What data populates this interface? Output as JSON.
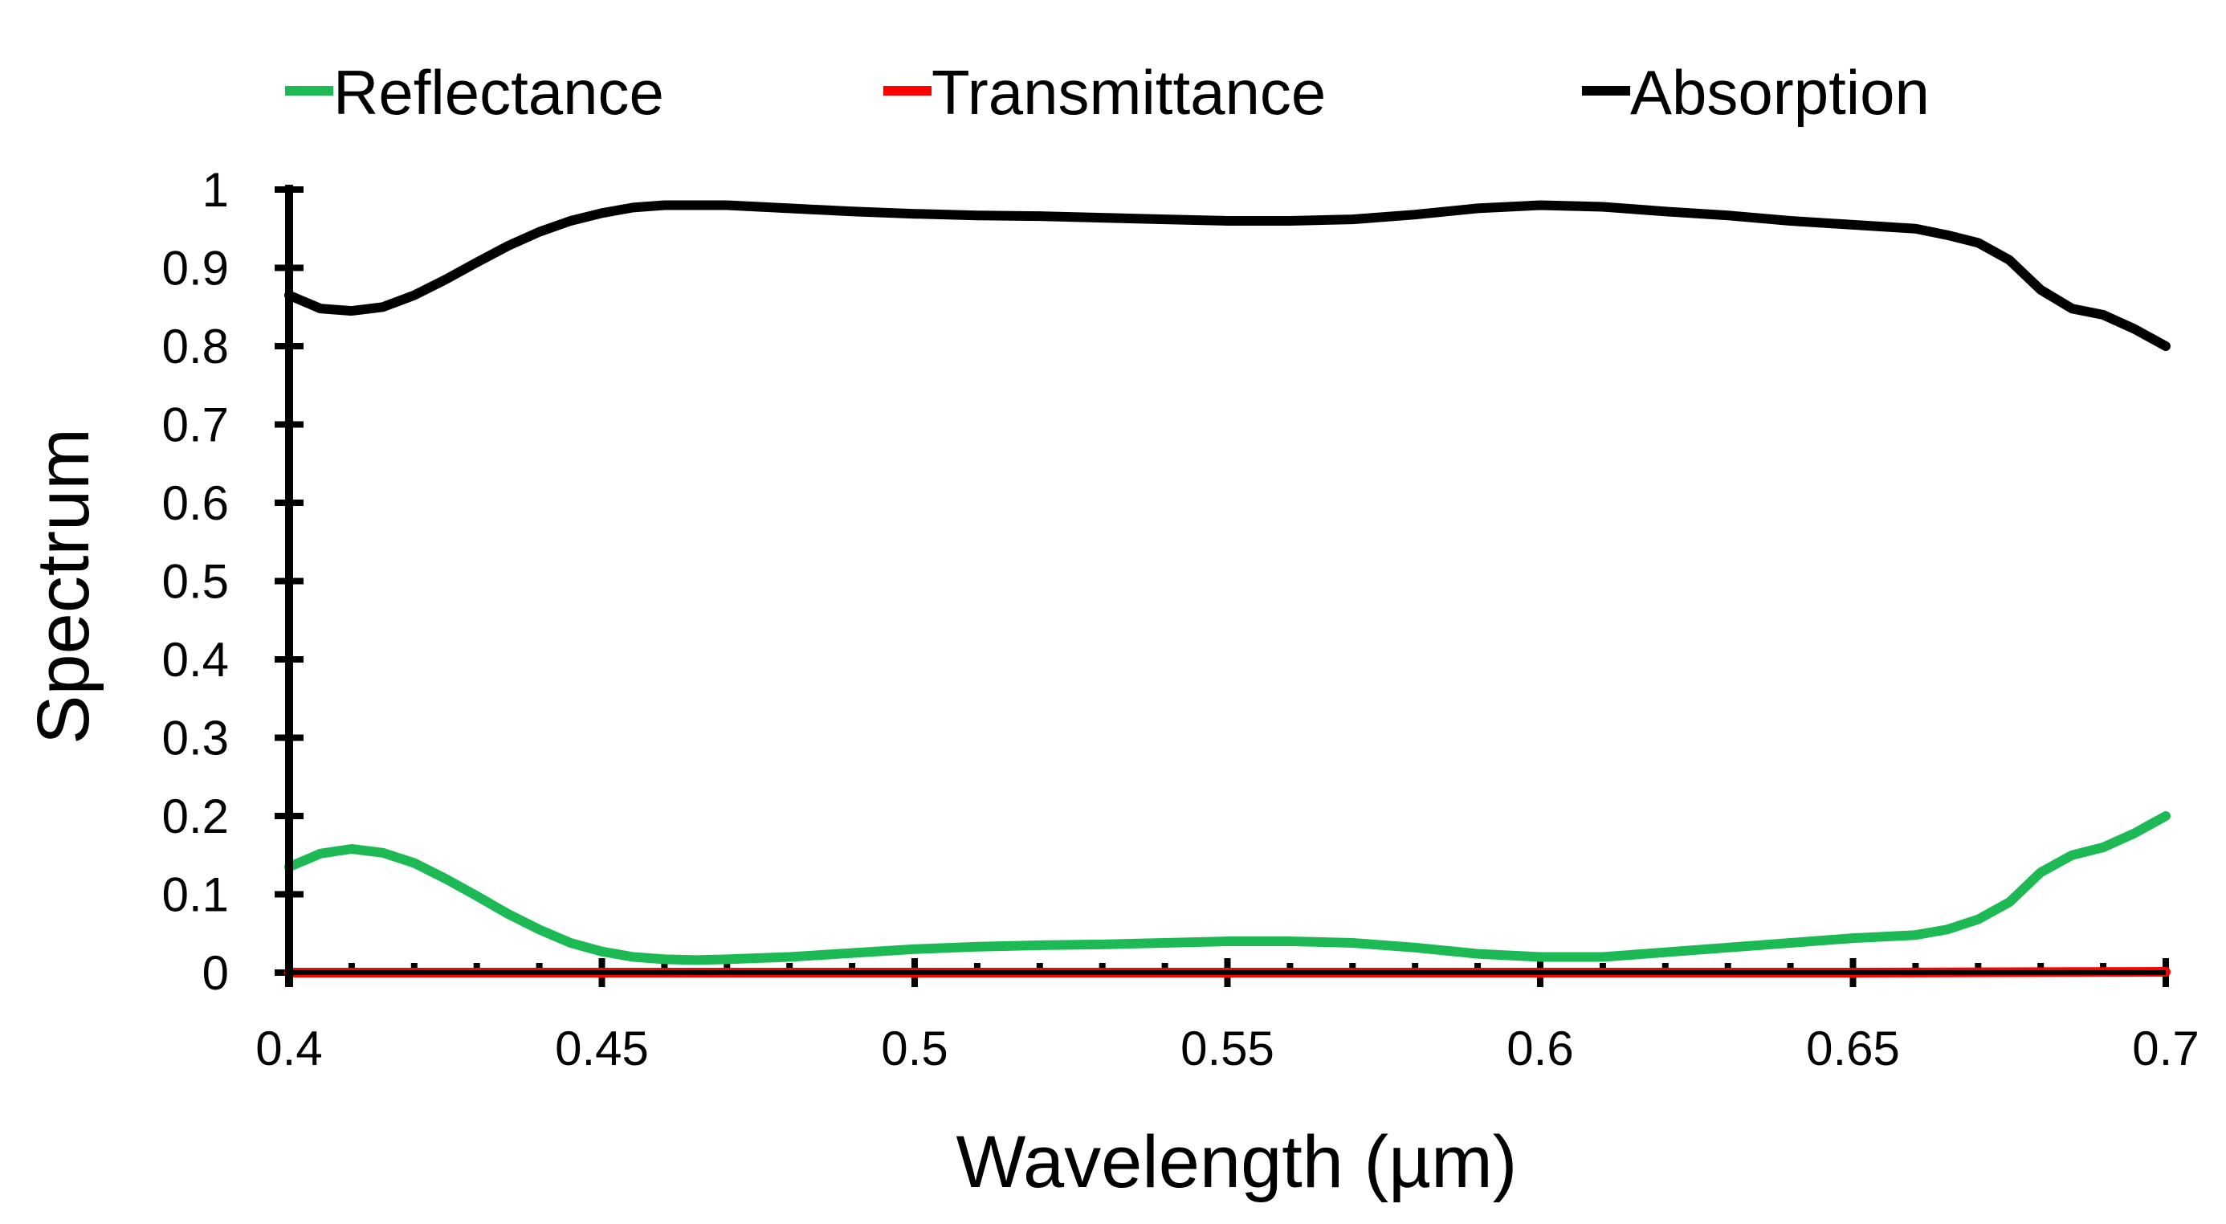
{
  "chart_data": {
    "type": "line",
    "title": "",
    "xlabel": "Wavelength (µm)",
    "ylabel": "Spectrum",
    "xlim": [
      0.4,
      0.7
    ],
    "ylim": [
      0,
      1
    ],
    "xticks": [
      0.4,
      0.45,
      0.5,
      0.55,
      0.6,
      0.65,
      0.7
    ],
    "xtick_labels": [
      "0.4",
      "0.45",
      "0.5",
      "0.55",
      "0.6",
      "0.65",
      "0.7"
    ],
    "yticks": [
      0,
      0.1,
      0.2,
      0.3,
      0.4,
      0.5,
      0.6,
      0.7,
      0.8,
      0.9,
      1
    ],
    "ytick_labels": [
      "0",
      "0.1",
      "0.2",
      "0.3",
      "0.4",
      "0.5",
      "0.6",
      "0.7",
      "0.8",
      "0.9",
      "1"
    ],
    "minor_xtick_step": 0.01,
    "grid": false,
    "legend_position": "top",
    "series": [
      {
        "name": "Reflectance",
        "color": "#1db954",
        "x": [
          0.4,
          0.405,
          0.41,
          0.415,
          0.42,
          0.425,
          0.43,
          0.435,
          0.44,
          0.445,
          0.45,
          0.455,
          0.46,
          0.465,
          0.47,
          0.48,
          0.49,
          0.5,
          0.51,
          0.52,
          0.53,
          0.54,
          0.55,
          0.56,
          0.57,
          0.58,
          0.59,
          0.6,
          0.61,
          0.62,
          0.63,
          0.64,
          0.65,
          0.66,
          0.665,
          0.67,
          0.675,
          0.68,
          0.685,
          0.69,
          0.695,
          0.7
        ],
        "values": [
          0.135,
          0.152,
          0.158,
          0.153,
          0.14,
          0.12,
          0.098,
          0.075,
          0.055,
          0.038,
          0.027,
          0.02,
          0.017,
          0.016,
          0.017,
          0.02,
          0.025,
          0.03,
          0.033,
          0.035,
          0.036,
          0.038,
          0.04,
          0.04,
          0.038,
          0.032,
          0.024,
          0.02,
          0.02,
          0.026,
          0.032,
          0.038,
          0.044,
          0.048,
          0.055,
          0.068,
          0.09,
          0.128,
          0.15,
          0.16,
          0.178,
          0.2
        ]
      },
      {
        "name": "Transmittance",
        "color": "#ff0000",
        "x": [
          0.4,
          0.45,
          0.5,
          0.55,
          0.6,
          0.65,
          0.7
        ],
        "values": [
          0.0,
          0.0,
          0.0,
          0.0,
          0.0,
          0.0,
          0.001
        ]
      },
      {
        "name": "Absorption",
        "color": "#000000",
        "x": [
          0.4,
          0.405,
          0.41,
          0.415,
          0.42,
          0.425,
          0.43,
          0.435,
          0.44,
          0.445,
          0.45,
          0.455,
          0.46,
          0.465,
          0.47,
          0.48,
          0.49,
          0.5,
          0.51,
          0.52,
          0.53,
          0.54,
          0.55,
          0.56,
          0.57,
          0.58,
          0.59,
          0.6,
          0.61,
          0.62,
          0.63,
          0.64,
          0.65,
          0.66,
          0.665,
          0.67,
          0.675,
          0.68,
          0.685,
          0.69,
          0.695,
          0.7
        ],
        "values": [
          0.865,
          0.848,
          0.845,
          0.85,
          0.865,
          0.885,
          0.907,
          0.928,
          0.946,
          0.96,
          0.97,
          0.977,
          0.98,
          0.98,
          0.98,
          0.976,
          0.972,
          0.969,
          0.967,
          0.966,
          0.964,
          0.962,
          0.96,
          0.96,
          0.962,
          0.968,
          0.976,
          0.98,
          0.978,
          0.972,
          0.967,
          0.96,
          0.955,
          0.95,
          0.942,
          0.932,
          0.91,
          0.872,
          0.848,
          0.84,
          0.822,
          0.8
        ]
      }
    ]
  }
}
